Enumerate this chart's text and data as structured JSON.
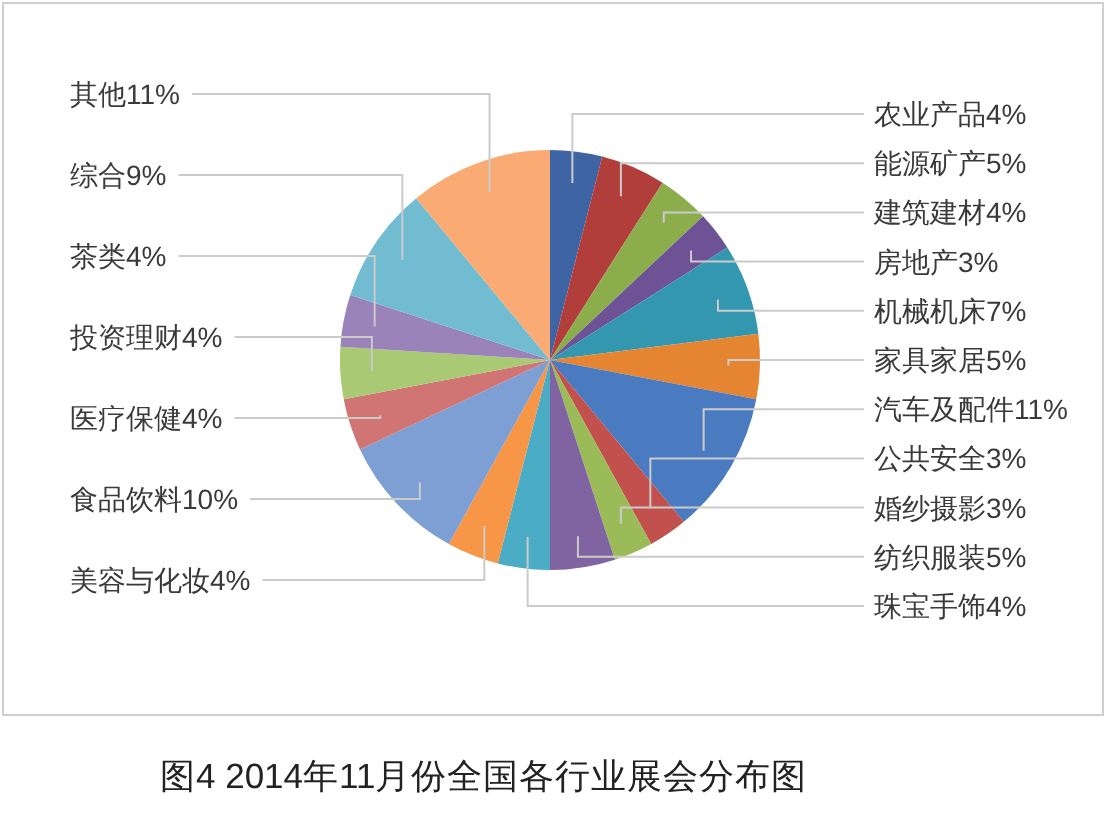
{
  "chart_data": {
    "type": "pie",
    "title": "图4 2014年11月份全国各行业展会分布图",
    "categories": [
      "农业产品",
      "能源矿产",
      "建筑建材",
      "房地产",
      "机械机床",
      "家具家居",
      "汽车及配件",
      "公共安全",
      "婚纱摄影",
      "纺织服装",
      "珠宝手饰",
      "美容与化妆",
      "食品饮料",
      "医疗保健",
      "投资理财",
      "茶类",
      "综合",
      "其他"
    ],
    "values": [
      4,
      5,
      4,
      3,
      7,
      5,
      11,
      3,
      3,
      5,
      4,
      4,
      10,
      4,
      4,
      4,
      9,
      11
    ],
    "value_labels": [
      "4%",
      "5%",
      "4%",
      "3%",
      "7%",
      "5%",
      "11%",
      "3%",
      "3%",
      "5%",
      "4%",
      "4%",
      "10%",
      "4%",
      "4%",
      "4%",
      "9%",
      "11%"
    ],
    "colors": [
      "#3e64a4",
      "#b23e3c",
      "#8cad4c",
      "#6d5295",
      "#3497b0",
      "#e58431",
      "#4a7bc1",
      "#c2504d",
      "#9bbb59",
      "#8064a2",
      "#4bacc6",
      "#f79646",
      "#7e9fd3",
      "#d17574",
      "#a9c974",
      "#9a83b8",
      "#72bcd2",
      "#f9ab73"
    ]
  }
}
